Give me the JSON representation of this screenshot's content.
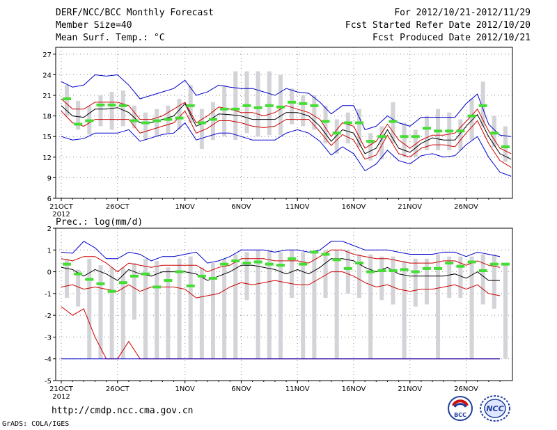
{
  "header": {
    "title": "DERF/NCC/BCC Monthly Forecast",
    "member_size": "Member Size=40",
    "variable_temp": "Mean Surf. Temp.: °C",
    "period": "For 2012/10/21-2012/11/29",
    "fcst_started": "Fcst Started Refer Date 2012/10/20",
    "fcst_produced": "Fcst Produced Date 2012/10/21"
  },
  "footer": {
    "url": "http://cmdp.ncc.cma.gov.cn",
    "grads": "GrADS: COLA/IGES",
    "logo_bcc": "BCC",
    "logo_ncc": "NCC"
  },
  "colors": {
    "ensemble_mean": "#000000",
    "spread_band": "#cc0000",
    "extremes": "#0000cc",
    "member_box": "#d3d3d8",
    "median_marker": "#44dd33",
    "grid": "#888888"
  },
  "chart_data": [
    {
      "type": "box-line",
      "title": "Mean Surf. Temp.: °C",
      "ylabel": "°C",
      "ylim": [
        6,
        28
      ],
      "yticks": [
        6,
        9,
        12,
        15,
        18,
        21,
        24,
        27
      ],
      "x_day_range": [
        0,
        39
      ],
      "xtick_days": [
        0,
        5,
        11,
        16,
        21,
        26,
        31,
        36
      ],
      "xtick_labels": [
        "21OCT",
        "26OCT",
        "1NOV",
        "6NOV",
        "11NOV",
        "16NOV",
        "21NOV",
        "26NOV"
      ],
      "year_label": "2012",
      "series": [
        {
          "name": "ensemble_mean",
          "values": [
            19.5,
            18,
            17.8,
            19,
            19,
            19.2,
            18.5,
            17,
            17,
            17.5,
            18,
            19.8,
            16.5,
            17.2,
            18.3,
            18.2,
            18,
            17.5,
            17.5,
            17.5,
            18.5,
            18.5,
            18,
            16.5,
            14.3,
            16,
            15.5,
            12.5,
            13.3,
            16,
            13.3,
            12.7,
            14,
            14.8,
            14.5,
            14.5,
            16.5,
            18.2,
            15,
            12.5,
            11.7
          ]
        },
        {
          "name": "upper_spread",
          "values": [
            20.5,
            19,
            19,
            20,
            20,
            20,
            19.5,
            17.5,
            17.5,
            18,
            19,
            20,
            17,
            18,
            19.3,
            19,
            18.5,
            18.5,
            18,
            18.5,
            19.5,
            19,
            18.5,
            17.5,
            15,
            17,
            16.5,
            13.3,
            14.3,
            16.8,
            14.5,
            13.3,
            14.5,
            15.2,
            15.2,
            15.5,
            17.2,
            19,
            15.8,
            13.3,
            12.5
          ]
        },
        {
          "name": "lower_spread",
          "values": [
            18.7,
            17,
            16.5,
            17.5,
            17.5,
            17.5,
            17.5,
            15.5,
            16,
            16.5,
            17,
            18.7,
            15.5,
            16.2,
            17.3,
            17.3,
            17,
            16.5,
            16.3,
            16.5,
            17.5,
            17.5,
            17.5,
            15.7,
            13.7,
            15.3,
            14.5,
            11.7,
            12.3,
            15.2,
            12.5,
            12,
            13.3,
            13.8,
            13.8,
            13.5,
            15.5,
            17.3,
            14,
            11.5,
            10.5
          ]
        },
        {
          "name": "maximum",
          "values": [
            23,
            22.2,
            22.5,
            24,
            23.8,
            24,
            22.5,
            20.5,
            21,
            21.5,
            22,
            23.2,
            21,
            21.5,
            22.5,
            22.2,
            22,
            22,
            21.5,
            21,
            22,
            21.5,
            21.3,
            20,
            18.3,
            19.5,
            19.5,
            16,
            16.5,
            18,
            17,
            16.5,
            17.8,
            17.8,
            17.8,
            17.8,
            19.8,
            21.2,
            16.8,
            15.2,
            15
          ]
        },
        {
          "name": "minimum",
          "values": [
            15,
            14.5,
            14.7,
            15.5,
            15.5,
            15.5,
            16,
            14.3,
            14.8,
            15.3,
            15.5,
            17,
            14.5,
            15,
            15.5,
            15.5,
            15,
            14.5,
            14.5,
            14.5,
            15.5,
            16,
            15.5,
            14.3,
            12.3,
            13.5,
            12.5,
            10,
            11,
            13,
            11.5,
            11,
            12.2,
            12.5,
            12,
            12.2,
            13.8,
            15,
            12,
            9.8,
            9.2
          ]
        }
      ],
      "boxes": {
        "days": [
          1,
          2,
          3,
          4,
          5,
          6,
          7,
          8,
          9,
          10,
          11,
          12,
          13,
          14,
          15,
          16,
          17,
          18,
          19,
          20,
          21,
          22,
          23,
          24,
          25,
          26,
          27,
          28,
          29,
          30,
          31,
          32,
          33,
          34,
          35,
          36,
          37,
          38,
          39,
          40
        ],
        "low": [
          18,
          16,
          15.3,
          16.5,
          16,
          16.5,
          16.2,
          14.5,
          15,
          15.5,
          16,
          17,
          13.2,
          14.5,
          15,
          14.5,
          15.5,
          15,
          15.2,
          15.2,
          16.8,
          16.5,
          16,
          14,
          12.5,
          14,
          13.5,
          11.5,
          11.7,
          14,
          12,
          12,
          13,
          13,
          13,
          13,
          14.5,
          16.5,
          13.5,
          11.3
        ],
        "high": [
          22.5,
          20.2,
          19.5,
          21,
          21.5,
          21.7,
          19.5,
          18.5,
          19,
          19.5,
          20.5,
          22.5,
          19,
          20,
          22.5,
          24.5,
          24.5,
          24.5,
          24.5,
          24,
          22,
          21,
          21,
          19.5,
          17.5,
          18.5,
          19,
          15.5,
          16.5,
          20,
          17,
          16,
          18,
          19,
          18.5,
          17.5,
          20.5,
          23,
          18,
          16.5
        ],
        "median": [
          20.5,
          16.8,
          17.3,
          19.6,
          19.6,
          19.5,
          17.3,
          17,
          17.3,
          17.5,
          17.7,
          19.5,
          17,
          17.5,
          19,
          19,
          19.5,
          19.2,
          19.5,
          19.3,
          20,
          19.8,
          19.5,
          17.2,
          15.5,
          17,
          17,
          14.3,
          15,
          17.2,
          15,
          15,
          16.2,
          15.8,
          15.8,
          15.8,
          18,
          19.5,
          15.5,
          13.5
        ]
      }
    },
    {
      "type": "box-line",
      "title": "Prec.: log(mm/d)",
      "ylabel": "log(mm/d)",
      "ylim": [
        -5,
        2
      ],
      "yticks": [
        -5,
        -4,
        -3,
        -2,
        -1,
        0,
        1,
        2
      ],
      "x_day_range": [
        0,
        39
      ],
      "xtick_days": [
        0,
        5,
        11,
        16,
        21,
        26,
        31,
        36
      ],
      "xtick_labels": [
        "21OCT",
        "26OCT",
        "1NOV",
        "6NOV",
        "11NOV",
        "16NOV",
        "21NOV",
        "26NOV"
      ],
      "year_label": "2012",
      "series": [
        {
          "name": "ensemble_mean",
          "values": [
            0.2,
            0.1,
            -0.2,
            0.1,
            -0.1,
            -0.4,
            0.1,
            -0.1,
            -0.2,
            0,
            0,
            0,
            -0.1,
            -0.4,
            -0.2,
            0,
            0.3,
            0.3,
            0.2,
            0.1,
            -0.1,
            0.1,
            -0.1,
            0.2,
            0.6,
            0.6,
            0.5,
            0.2,
            0,
            0.2,
            -0.1,
            -0.2,
            -0.2,
            -0.2,
            -0.2,
            -0.1,
            -0.3,
            0,
            -0.4,
            -0.4
          ]
        },
        {
          "name": "upper_spread",
          "values": [
            0.6,
            0.5,
            0.7,
            0.7,
            0.4,
            0,
            0.4,
            0.3,
            0.2,
            0.3,
            0.3,
            0.3,
            0.3,
            0,
            0.2,
            0.3,
            0.6,
            0.6,
            0.6,
            0.5,
            0.5,
            0.5,
            0.4,
            0.7,
            1.0,
            1.0,
            0.8,
            0.7,
            0.6,
            0.6,
            0.5,
            0.4,
            0.4,
            0.4,
            0.5,
            0.5,
            0.3,
            0.5,
            0.3,
            0.2
          ]
        },
        {
          "name": "lower_spread",
          "values": [
            -1.6,
            -2,
            -1.7,
            -3,
            -4,
            -4,
            -3.2,
            -4,
            -4,
            -4,
            -4,
            -4,
            -4,
            -4,
            -4,
            -4,
            -4,
            -4,
            -4,
            -4,
            -4,
            -4,
            -4,
            -4,
            -4,
            -4,
            -4,
            -4,
            -4,
            -4,
            -4,
            -4,
            -4,
            -4,
            -4,
            -4,
            -4,
            -4,
            -4,
            -4
          ]
        },
        {
          "name": "lower_spread_2",
          "values": [
            -0.7,
            -0.6,
            -0.8,
            -0.7,
            -0.8,
            -0.9,
            -0.6,
            -0.9,
            -0.7,
            -0.7,
            -0.7,
            -0.8,
            -1.2,
            -1.1,
            -1.0,
            -0.7,
            -0.5,
            -0.6,
            -0.5,
            -0.4,
            -0.5,
            -0.6,
            -0.6,
            -0.3,
            0,
            0,
            -0.2,
            -0.5,
            -0.7,
            -0.6,
            -0.8,
            -0.9,
            -0.8,
            -0.8,
            -0.7,
            -0.6,
            -0.8,
            -0.6,
            -1.0,
            -1.1
          ]
        },
        {
          "name": "maximum",
          "values": [
            0.9,
            0.85,
            1.4,
            1.1,
            0.6,
            0.6,
            0.9,
            0.8,
            0.5,
            0.7,
            0.7,
            0.8,
            0.9,
            0.4,
            0.5,
            0.7,
            1.0,
            1.0,
            1.0,
            0.9,
            1.0,
            1.0,
            0.9,
            1.0,
            1.4,
            1.4,
            1.2,
            1.0,
            1.0,
            1.0,
            0.9,
            0.8,
            0.8,
            0.8,
            0.9,
            0.9,
            0.7,
            0.9,
            0.8,
            0.7
          ]
        },
        {
          "name": "minimum",
          "values": [
            -4,
            -4,
            -4,
            -4,
            -4,
            -4,
            -4,
            -4,
            -4,
            -4,
            -4,
            -4,
            -4,
            -4,
            -4,
            -4,
            -4,
            -4,
            -4,
            -4,
            -4,
            -4,
            -4,
            -4,
            -4,
            -4,
            -4,
            -4,
            -4,
            -4,
            -4,
            -4,
            -4,
            -4,
            -4,
            -4,
            -4,
            -4,
            -4,
            -4
          ]
        }
      ],
      "boxes": {
        "days": [
          1,
          2,
          3,
          4,
          5,
          6,
          7,
          8,
          9,
          10,
          11,
          12,
          13,
          14,
          15,
          16,
          17,
          18,
          19,
          20,
          21,
          22,
          23,
          24,
          25,
          26,
          27,
          28,
          29,
          30,
          31,
          32,
          33,
          34,
          35,
          36,
          37,
          38,
          39,
          40
        ],
        "low": [
          -1.2,
          -1.6,
          -4,
          -4,
          -4,
          -4,
          -2.2,
          -4,
          -4,
          -4,
          -4,
          -4,
          -4,
          -4,
          -4,
          -4,
          -1.3,
          -4,
          -4,
          -4,
          -1.2,
          -4,
          -4,
          -1.2,
          -4,
          -1.0,
          -1.2,
          -4,
          -1.3,
          -1.5,
          -4,
          -1.6,
          -1.5,
          -4,
          -1.2,
          -1.2,
          -4,
          -1.5,
          -1.7,
          -4
        ],
        "high": [
          0.6,
          0.1,
          0.6,
          0.3,
          0.2,
          0.2,
          0.4,
          0.6,
          0.5,
          0.2,
          0.6,
          0.7,
          0.2,
          0.4,
          0.6,
          0.8,
          0.9,
          1.0,
          1.0,
          0.9,
          1.0,
          0.9,
          0.9,
          1.0,
          1.0,
          1.0,
          0.8,
          0.8,
          0.7,
          0.7,
          0.5,
          0.6,
          0.6,
          0.8,
          0.7,
          0.7,
          0.7,
          0.8,
          0.8,
          0.4
        ],
        "median": [
          0.35,
          -0.1,
          -0.35,
          -0.55,
          -0.9,
          -0.5,
          -0.2,
          -0.1,
          -0.7,
          -0.4,
          0.0,
          -0.65,
          -0.2,
          -0.3,
          0.35,
          0.5,
          0.4,
          0.45,
          0.35,
          0.3,
          0.6,
          0.35,
          0.9,
          0.8,
          0.55,
          0.15,
          0.4,
          0.0,
          0.05,
          0.05,
          0.1,
          0.0,
          0.15,
          0.15,
          0.4,
          0.25,
          0.45,
          0.05,
          0.35,
          0.35
        ]
      }
    }
  ]
}
